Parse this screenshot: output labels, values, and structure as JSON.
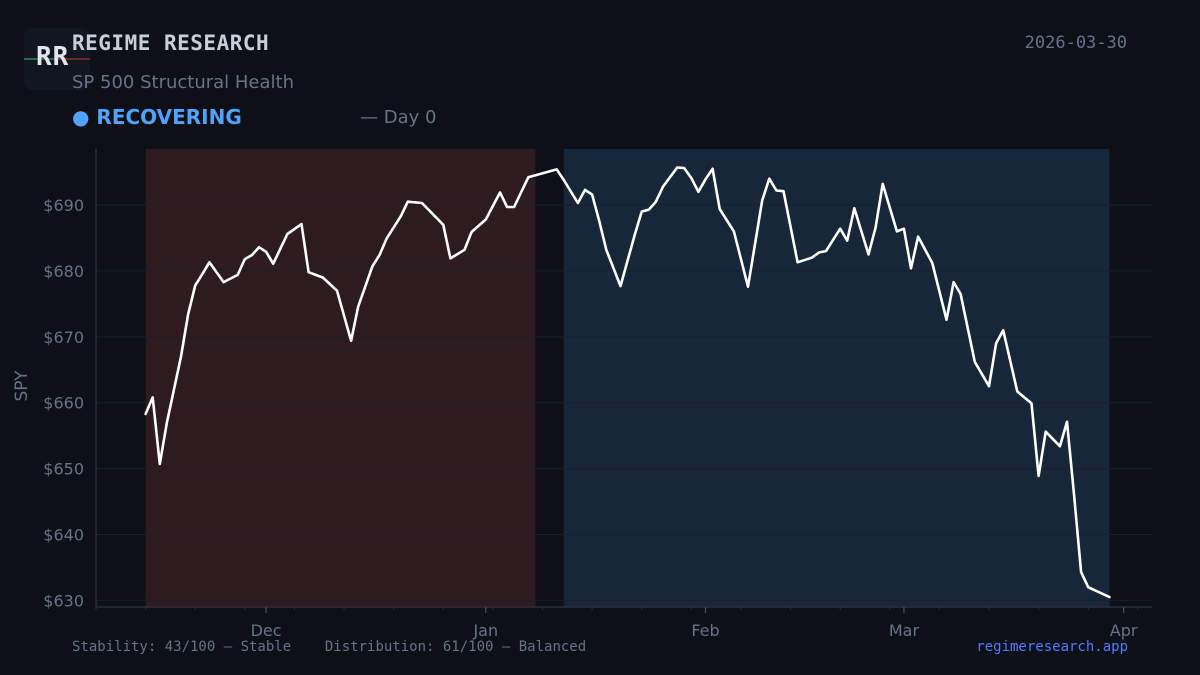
{
  "header": {
    "logo_text": "RR",
    "brand": "REGIME RESEARCH",
    "date": "2026-03-30",
    "subtitle": "SP 500 Structural Health",
    "status_label": "● RECOVERING",
    "day_info": "— Day 0"
  },
  "footer": {
    "stability": "Stability: 43/100 — Stable",
    "distribution": "Distribution: 61/100 — Balanced",
    "link": "regimeresearch.app"
  },
  "colors": {
    "background": "#0d1017",
    "red_regime": "#2e1b1f",
    "blue_regime": "#182639",
    "line": "#ffffff",
    "status": "#4fa3ff",
    "link": "#4f7cff",
    "muted": "#6b7188"
  },
  "chart_data": {
    "type": "line",
    "ylabel": "SPY",
    "xlabel": "",
    "ylim": [
      629,
      698.5
    ],
    "xlim": [
      "2025-11-07",
      "2026-04-05"
    ],
    "yticks": [
      630,
      640,
      650,
      660,
      670,
      680,
      690
    ],
    "ytick_labels": [
      "$630",
      "$640",
      "$650",
      "$660",
      "$670",
      "$680",
      "$690"
    ],
    "xticks": [
      "2025-12-01",
      "2026-01-01",
      "2026-02-01",
      "2026-03-01",
      "2026-04-01"
    ],
    "xtick_labels": [
      "Dec",
      "Jan",
      "Feb",
      "Mar",
      "Apr"
    ],
    "grid": true,
    "regions": [
      {
        "regime": "red",
        "start": "2025-11-14",
        "end": "2026-01-08"
      },
      {
        "regime": "blue",
        "start": "2026-01-12",
        "end": "2026-03-30"
      }
    ],
    "series": [
      {
        "x": [
          "2025-11-14",
          "2025-11-15",
          "2025-11-16",
          "2025-11-17",
          "2025-11-19",
          "2025-11-20",
          "2025-11-21",
          "2025-11-22",
          "2025-11-23",
          "2025-11-25",
          "2025-11-27",
          "2025-11-28",
          "2025-11-29",
          "2025-11-30",
          "2025-12-01",
          "2025-12-02",
          "2025-12-04",
          "2025-12-06",
          "2025-12-07",
          "2025-12-08",
          "2025-12-09",
          "2025-12-11",
          "2025-12-13",
          "2025-12-14",
          "2025-12-16",
          "2025-12-17",
          "2025-12-18",
          "2025-12-20",
          "2025-12-21",
          "2025-12-23",
          "2025-12-26",
          "2025-12-27",
          "2025-12-29",
          "2025-12-30",
          "2026-01-01",
          "2026-01-03",
          "2026-01-04",
          "2026-01-05",
          "2026-01-07",
          "2026-01-11",
          "2026-01-12",
          "2026-01-14",
          "2026-01-15",
          "2026-01-16",
          "2026-01-17",
          "2026-01-18",
          "2026-01-20",
          "2026-01-22",
          "2026-01-23",
          "2026-01-24",
          "2026-01-25",
          "2026-01-26",
          "2026-01-28",
          "2026-01-29",
          "2026-01-30",
          "2026-01-31",
          "2026-02-01",
          "2026-02-02",
          "2026-02-03",
          "2026-02-05",
          "2026-02-07",
          "2026-02-09",
          "2026-02-10",
          "2026-02-11",
          "2026-02-12",
          "2026-02-14",
          "2026-02-16",
          "2026-02-17",
          "2026-02-18",
          "2026-02-20",
          "2026-02-21",
          "2026-02-22",
          "2026-02-24",
          "2026-02-25",
          "2026-02-26",
          "2026-02-28",
          "2026-03-01",
          "2026-03-02",
          "2026-03-03",
          "2026-03-05",
          "2026-03-07",
          "2026-03-08",
          "2026-03-09",
          "2026-03-11",
          "2026-03-13",
          "2026-03-14",
          "2026-03-15",
          "2026-03-17",
          "2026-03-19",
          "2026-03-20",
          "2026-03-21",
          "2026-03-23",
          "2026-03-24",
          "2026-03-25",
          "2026-03-26",
          "2026-03-27",
          "2026-03-30"
        ],
        "values": [
          658.3,
          660.8,
          650.7,
          657.0,
          667.0,
          673.4,
          677.8,
          679.5,
          681.3,
          678.3,
          679.4,
          681.8,
          682.4,
          683.6,
          682.9,
          681.1,
          685.6,
          687.1,
          679.8,
          679.4,
          679.0,
          677.0,
          669.4,
          674.6,
          680.7,
          682.4,
          684.9,
          688.3,
          690.5,
          690.3,
          687.0,
          681.9,
          683.2,
          685.9,
          687.8,
          691.9,
          689.7,
          689.7,
          694.2,
          695.4,
          693.8,
          690.3,
          692.3,
          691.6,
          687.6,
          683.2,
          677.7,
          685.4,
          689.0,
          689.3,
          690.5,
          692.8,
          695.7,
          695.6,
          694.1,
          692.0,
          693.9,
          695.5,
          689.4,
          686.0,
          677.6,
          690.7,
          694.0,
          692.2,
          692.1,
          681.3,
          682.0,
          682.8,
          683.0,
          686.4,
          684.6,
          689.5,
          682.5,
          686.6,
          693.2,
          686.0,
          686.4,
          680.4,
          685.2,
          681.2,
          672.6,
          678.3,
          676.5,
          666.2,
          662.5,
          669.0,
          671.0,
          661.7,
          659.9,
          648.9,
          655.6,
          653.4,
          657.1,
          646.1,
          634.3,
          632.0,
          630.5
        ]
      }
    ]
  }
}
